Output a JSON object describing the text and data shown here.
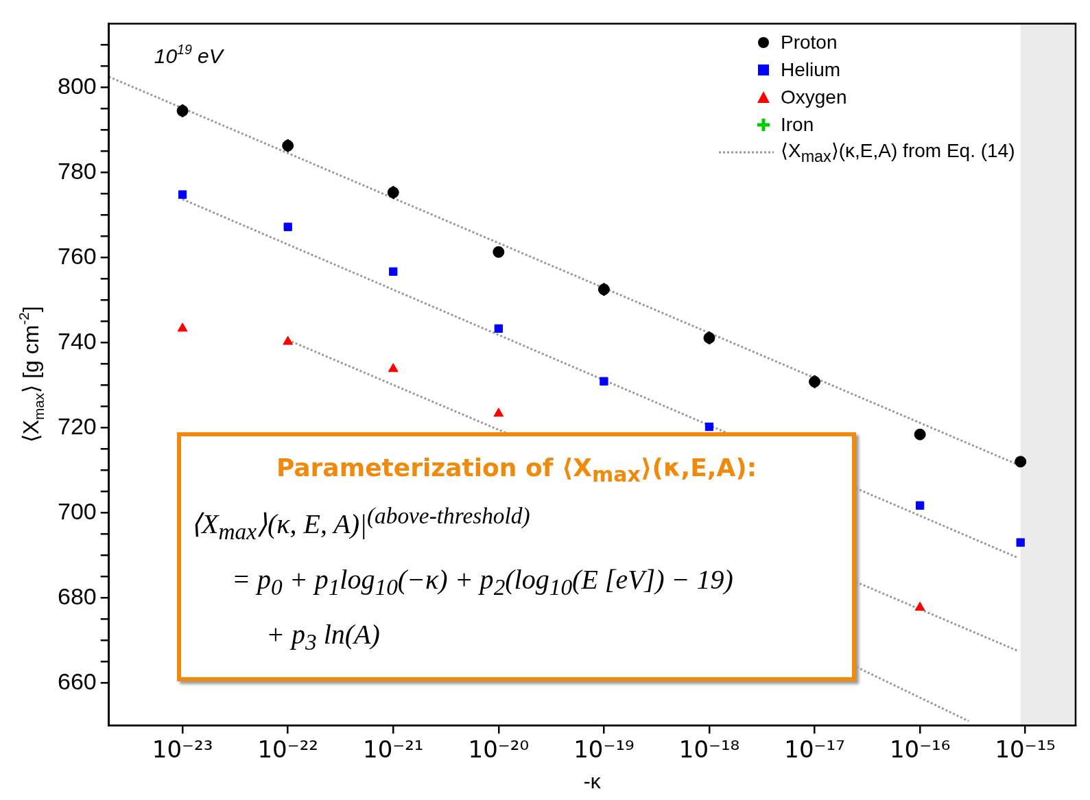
{
  "chart_data": {
    "type": "scatter",
    "xlabel": "-κ",
    "ylabel": "⟨X$_{max}$⟩ [g cm$^{-2}$]",
    "log": "x",
    "grid": false,
    "legend": "top right",
    "annotations": [
      "10$^{19}$ eV",
      "Parameterization of ⟨X$_{max}$⟩(κ,E,A):",
      "⟨X$_{max}$⟩(κ, E, A)|$^{(above-threshold)}$",
      "= p$_{0}$ + p$_{1}$log$_{10}$(−κ) + p$_{2}$(log$_{10}$(E [eV]) − 19)",
      "+ p$_{3}$ ln(A)"
    ],
    "x": [
      1e-23,
      1e-22,
      1e-21,
      1e-20,
      1e-19,
      1e-18,
      1e-17,
      1e-16,
      9e-16
    ],
    "xlim": [
      2e-24,
      3e-15
    ],
    "xticks": [
      {
        "value": 1e-23,
        "label": "10⁻²³"
      },
      {
        "value": 1e-22,
        "label": "10⁻²²"
      },
      {
        "value": 1e-21,
        "label": "10⁻²¹"
      },
      {
        "value": 1e-20,
        "label": "10⁻²⁰"
      },
      {
        "value": 1e-19,
        "label": "10⁻¹⁹"
      },
      {
        "value": 1e-18,
        "label": "10⁻¹⁸"
      },
      {
        "value": 1e-17,
        "label": "10⁻¹⁷"
      },
      {
        "value": 1e-16,
        "label": "10⁻¹⁶"
      },
      {
        "value": 1e-15,
        "label": "10⁻¹⁵"
      }
    ],
    "ylim": [
      650,
      815
    ],
    "yticks": [
      660,
      {
        "value": 665,
        "label": null
      },
      {
        "value": 670,
        "label": null
      },
      {
        "value": 675,
        "label": null
      },
      680,
      {
        "value": 685,
        "label": null
      },
      {
        "value": 690,
        "label": null
      },
      {
        "value": 695,
        "label": null
      },
      700,
      {
        "value": 705,
        "label": null
      },
      {
        "value": 710,
        "label": null
      },
      {
        "value": 715,
        "label": null
      },
      720,
      {
        "value": 725,
        "label": null
      },
      {
        "value": 730,
        "label": null
      },
      {
        "value": 735,
        "label": null
      },
      740,
      {
        "value": 745,
        "label": null
      },
      {
        "value": 750,
        "label": null
      },
      {
        "value": 755,
        "label": null
      },
      760,
      {
        "value": 765,
        "label": null
      },
      {
        "value": 770,
        "label": null
      },
      {
        "value": 775,
        "label": null
      },
      780,
      {
        "value": 785,
        "label": null
      },
      {
        "value": 790,
        "label": null
      },
      {
        "value": 795,
        "label": null
      },
      800,
      {
        "value": 805,
        "label": null
      },
      {
        "value": 810,
        "label": null
      }
    ],
    "bands": [
      {
        "axis": "x",
        "from": 9e-16,
        "to": 3e-15,
        "color": "#ebebeb"
      }
    ],
    "series": [
      {
        "name": "Proton",
        "color": "#000000",
        "marker": "circle",
        "values": [
          794.5,
          786.3,
          775.3,
          761.3,
          752.5,
          741.1,
          730.8,
          718.4,
          712.0
        ],
        "errors": [
          1.5,
          1.5,
          1.5,
          1,
          1.5,
          1.5,
          1.5,
          1,
          1
        ]
      },
      {
        "name": "Helium",
        "color": "#0000ff",
        "marker": "square",
        "values": [
          774.8,
          767.2,
          756.7,
          743.3,
          730.9,
          720.2,
          null,
          701.7,
          693.0
        ]
      },
      {
        "name": "Oxygen",
        "color": "#ff0000",
        "marker": "triangle",
        "values": [
          743.3,
          740.2,
          733.8,
          723.3,
          null,
          null,
          null,
          677.7,
          null
        ]
      },
      {
        "name": "Iron",
        "color": "#00cc00",
        "marker": "cross",
        "values": [
          null,
          null,
          null,
          null,
          null,
          null,
          null,
          null,
          null
        ]
      },
      {
        "name": "⟨X$_{max}$⟩(κ,E,A) from Eq. (14)",
        "type": "line",
        "color": "#999999",
        "marker": "none",
        "line_style": "dotted",
        "x": [
          2e-24,
          8.5e-16
        ],
        "values": [
          802.5,
          711.3
        ]
      },
      {
        "type": "line",
        "color": "#999999",
        "marker": "none",
        "line_style": "dotted",
        "x": [
          1e-23,
          8.5e-16
        ],
        "values": [
          773.7,
          689.4
        ]
      },
      {
        "type": "line",
        "color": "#999999",
        "marker": "none",
        "line_style": "dotted",
        "x": [
          1e-22,
          8.5e-16
        ],
        "values": [
          740.6,
          667.5
        ]
      },
      {
        "type": "line",
        "color": "#999999",
        "marker": "none",
        "line_style": "dotted",
        "x": [
          2.5e-17,
          2.9e-16
        ],
        "values": [
          663.7,
          651.0
        ]
      }
    ]
  }
}
